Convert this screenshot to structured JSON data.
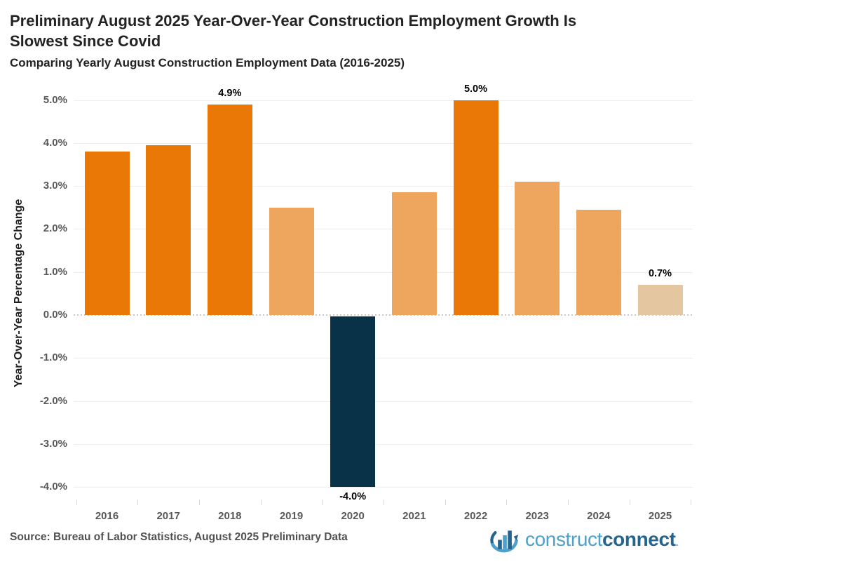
{
  "header": {
    "title_lines": [
      "Preliminary August 2025 Year-Over-Year Construction Employment Growth Is",
      "Slowest Since Covid"
    ],
    "subtitle": "Comparing Yearly August Construction Employment Data (2016-2025)"
  },
  "chart_data": {
    "type": "bar",
    "title": "Preliminary August 2025 Year-Over-Year Construction Employment Growth Is Slowest Since Covid",
    "subtitle": "Comparing Yearly August Construction Employment Data (2016-2025)",
    "categories": [
      "2016",
      "2017",
      "2018",
      "2019",
      "2020",
      "2021",
      "2022",
      "2023",
      "2024",
      "2025"
    ],
    "values": [
      3.8,
      3.95,
      4.9,
      2.5,
      -4.0,
      2.85,
      5.0,
      3.1,
      2.45,
      0.7
    ],
    "data_labels": [
      "",
      "",
      "4.9%",
      "",
      "-4.0%",
      "",
      "5.0%",
      "",
      "",
      "0.7%"
    ],
    "bar_color_keys": [
      "dark_orange",
      "dark_orange",
      "dark_orange",
      "light_orange",
      "navy",
      "light_orange",
      "dark_orange",
      "light_orange",
      "light_orange",
      "pale_tan"
    ],
    "xlabel": "",
    "ylabel": "Year-Over-Year Percentage Change",
    "ylim": [
      -4.6,
      5.4
    ],
    "ytick_values": [
      5,
      4,
      3,
      2,
      1,
      0,
      -1,
      -2,
      -3,
      -4
    ],
    "ytick_labels": [
      "5.0%",
      "4.0%",
      "3.0%",
      "2.0%",
      "1.0%",
      "0.0%",
      "-1.0%",
      "-2.0%",
      "-3.0%",
      "-4.0%"
    ],
    "grid": true,
    "legend": false,
    "zero_line_style": "dotted"
  },
  "palette": {
    "dark_orange": "#EA7806",
    "light_orange": "#EEA55E",
    "pale_tan": "#E4C6A0",
    "navy": "#093147",
    "gridline": "#EDEDED",
    "tick_text": "#58595B",
    "label_text": "#000000"
  },
  "footer": {
    "source": "Source: Bureau of Labor Statistics, August 2025 Preliminary Data",
    "logo": {
      "construct": "construct",
      "connect": "connect",
      "mark": ".",
      "icon": "bar-chart-swoosh-icon",
      "light_blue": "#4FA0CA",
      "dark_blue": "#24658F"
    }
  }
}
